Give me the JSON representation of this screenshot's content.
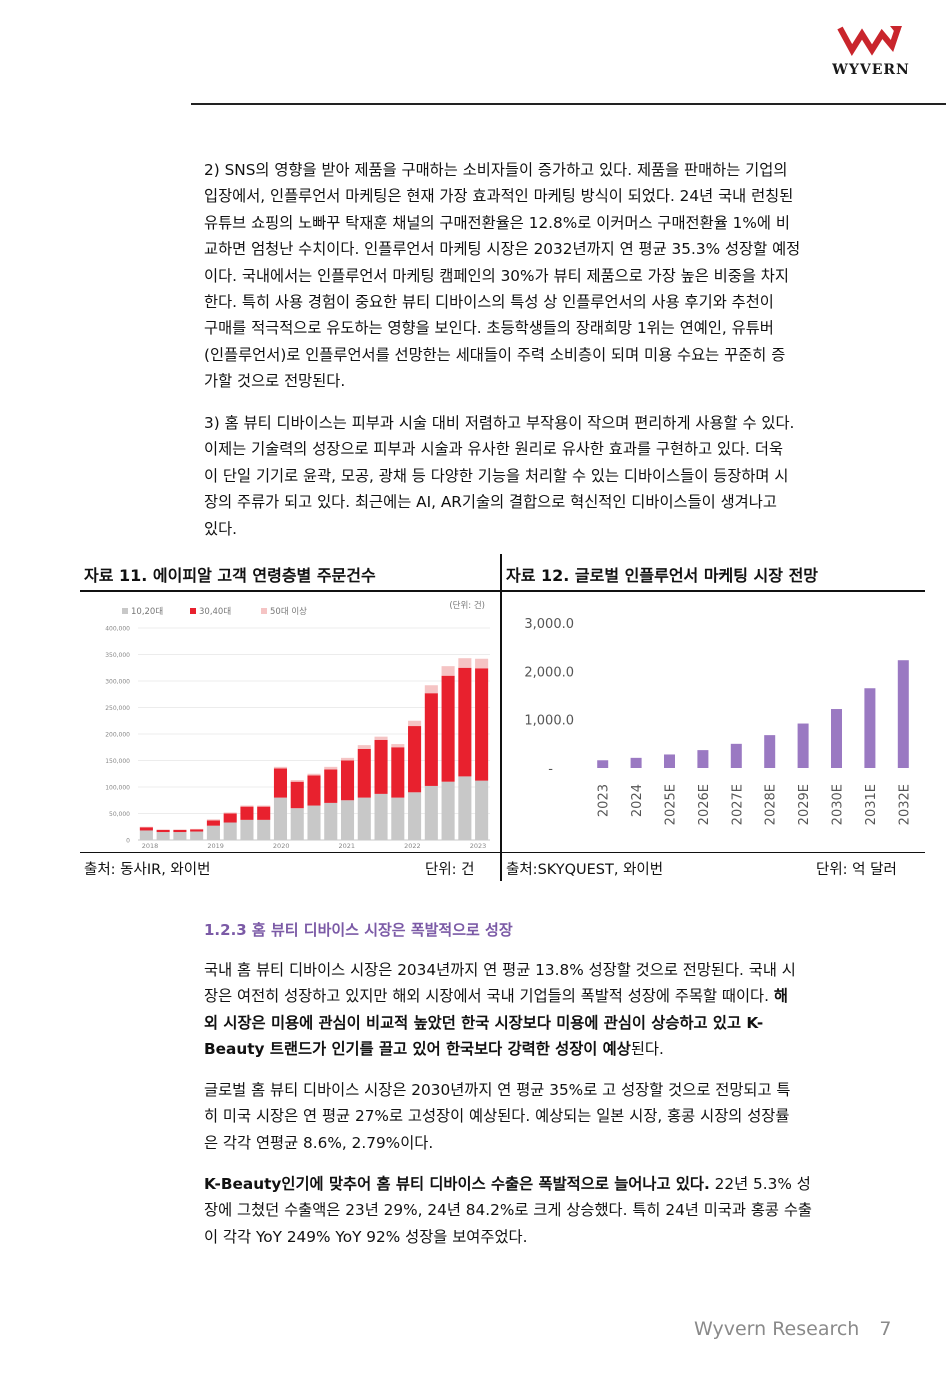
{
  "header": {
    "logo_text": "WYVERN"
  },
  "paragraphs": {
    "p1": [
      "2) SNS의 영향을 받아 제품을 구매하는 소비자들이 증가하고 있다. 제품을 판매하는 기업의",
      "입장에서, 인플루언서 마케팅은 현재 가장 효과적인 마케팅 방식이 되었다. 24년 국내 런칭된",
      "유튜브 쇼핑의 노빠꾸 탁재훈 채널의 구매전환율은 12.8%로 이커머스 구매전환율 1%에 비",
      "교하면 엄청난 수치이다. 인플루언서 마케팅 시장은 2032년까지 연 평균 35.3% 성장할 예정",
      "이다. 국내에서는 인플루언서 마케팅 캠페인의 30%가 뷰티 제품으로 가장 높은 비중을 차지",
      "한다. 특히 사용 경험이 중요한 뷰티 디바이스의 특성 상 인플루언서의 사용 후기와 추천이",
      "구매를 적극적으로 유도하는 영향을 보인다. 초등학생들의 장래희망 1위는 연예인, 유튜버",
      "(인플루언서)로 인플루언서를 선망한는 세대들이 주력 소비층이 되며 미용 수요는 꾸준히 증",
      "가할 것으로 전망된다."
    ],
    "p2": [
      "3) 홈 뷰티 디바이스는 피부과 시술 대비 저렴하고 부작용이 작으며 편리하게 사용할 수 있다.",
      "이제는 기술력의 성장으로 피부과 시술과 유사한 원리로 유사한 효과를 구현하고 있다. 더욱",
      "이 단일 기기로 윤곽, 모공, 광채 등 다양한 기능을 처리할 수 있는 디바이스들이 등장하며 시",
      "장의 주류가 되고 있다. 최근에는 AI, AR기술의 결합으로 혁신적인 디바이스들이 생겨나고",
      "있다."
    ],
    "p3": {
      "l1": "국내 홈 뷰티 디바이스 시장은 2034년까지 연 평균 13.8% 성장할 것으로 전망된다. 국내 시",
      "l2a": "장은 여전히 성장하고 있지만 해외 시장에서 국내 기업들의 폭발적 성장에 주목할 때이다. ",
      "l2b": "해",
      "l3": "외 시장은 미용에 관심이 비교적 높았던 한국 시장보다 미용에 관심이 상승하고 있고 K-",
      "l4a": "Beauty 트랜드가 인기를 끌고 있어 한국보다 강력한 성장이 예상",
      "l4b": "된다."
    },
    "p4": [
      "글로벌 홈 뷰티 디바이스 시장은 2030년까지 연 평균 35%로 고 성장할 것으로 전망되고 특",
      "히 미국 시장은 연 평균 27%로 고성장이 예상된다. 예상되는 일본 시장, 홍콩 시장의 성장률",
      "은 각각 연평균 8.6%, 2.79%이다."
    ],
    "p5": {
      "l1a": "K-Beauty인기에 맞추어 홈 뷰티 디바이스 수출은 폭발적으로 늘어나고 있다.",
      "l1b": " 22년 5.3% 성",
      "l2": "장에 그쳤던 수출액은 23년 29%, 24년 84.2%로 크게 상승했다. 특히 24년 미국과 홍콩 수출",
      "l3": "이 각각 YoY 249% YoY 92% 성장을 보여주었다."
    }
  },
  "chart_left": {
    "title": "자료 11. 에이피알 고객 연령층별 주문건수",
    "source": "출처: 동사IR, 와이번",
    "unit": "단위: 건"
  },
  "chart_right": {
    "title": "자료 12. 글로벌 인플루언서 마케팅 시장 전망",
    "source": "출처:SKYQUEST, 와이번",
    "unit": "단위: 억 달러"
  },
  "chart_data": [
    {
      "type": "bar",
      "stacked": true,
      "unit_label": "(단위: 건)",
      "legend": [
        "10,20대",
        "30,40대",
        "50대 이상"
      ],
      "colors": [
        "#c8c8c8",
        "#e8212e",
        "#f5c4c4"
      ],
      "x_tick_labels": [
        "2018",
        "2019",
        "2020",
        "2021",
        "2022",
        "2023"
      ],
      "y_tick_labels": [
        "0",
        "50,000",
        "100,000",
        "150,000",
        "200,000",
        "250,000",
        "300,000",
        "350,000",
        "400,000"
      ],
      "ylim": [
        0,
        400000
      ],
      "series": [
        {
          "name": "10,20대",
          "values": [
            18000,
            15000,
            15000,
            16000,
            27000,
            33000,
            38000,
            38000,
            80000,
            60000,
            65000,
            70000,
            75000,
            80000,
            87000,
            80000,
            90000,
            102000,
            110000,
            120000,
            112000
          ]
        },
        {
          "name": "30,40대",
          "values": [
            6000,
            4000,
            4000,
            4000,
            10000,
            17000,
            25000,
            25000,
            55000,
            50000,
            57000,
            63000,
            75000,
            92000,
            102000,
            95000,
            125000,
            175000,
            200000,
            205000,
            212000
          ]
        },
        {
          "name": "50대 이상",
          "values": [
            1000,
            1000,
            1000,
            1000,
            2000,
            2000,
            2000,
            2000,
            3000,
            3000,
            3000,
            5000,
            5000,
            7000,
            6000,
            6000,
            10000,
            15000,
            18000,
            18000,
            18000
          ]
        }
      ]
    },
    {
      "type": "bar",
      "categories": [
        "2023",
        "2024",
        "2025E",
        "2026E",
        "2027E",
        "2028E",
        "2029E",
        "2030E",
        "2031E",
        "2032E"
      ],
      "values": [
        160,
        210,
        280,
        370,
        500,
        680,
        920,
        1220,
        1650,
        2230
      ],
      "y_tick_labels": [
        "-",
        "1,000.0",
        "2,000.0",
        "3,000.0"
      ],
      "ylim": [
        0,
        3000
      ],
      "color": "#9a79c2"
    }
  ],
  "section": {
    "title": "1.2.3 홈 뷰티 디바이스 시장은 폭발적으로 성장"
  },
  "footer": {
    "brand": "Wyvern Research",
    "page": "7"
  }
}
